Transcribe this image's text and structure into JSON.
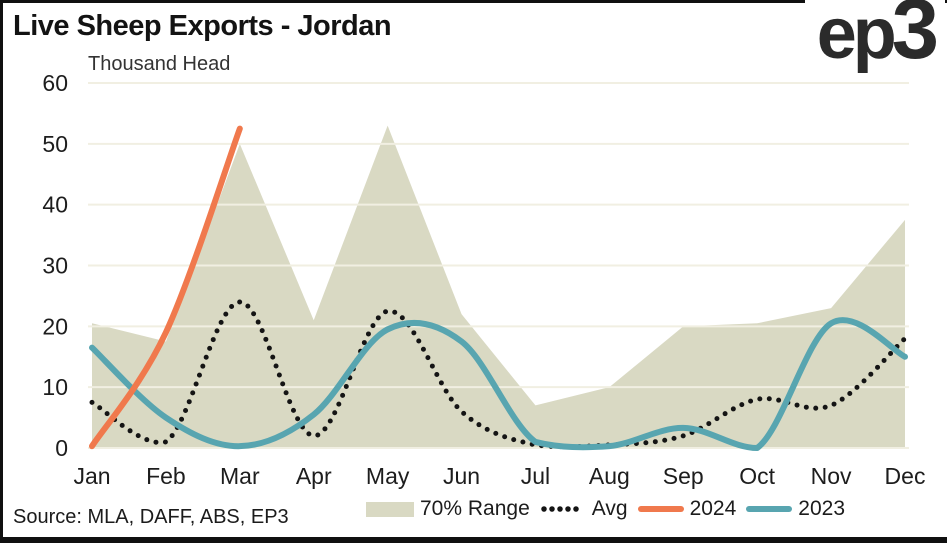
{
  "header": {
    "title": "Live Sheep Exports - Jordan",
    "subtitle": "Thousand Head"
  },
  "logo": {
    "text_ep": "ep",
    "text_3": "3"
  },
  "source": {
    "text": "Source: MLA, DAFF, ABS, EP3"
  },
  "legend": {
    "items": [
      {
        "label": "70% Range",
        "swatch": "area",
        "color": "#d9d9c3"
      },
      {
        "label": "Avg",
        "swatch": "dots",
        "color": "#141414"
      },
      {
        "label": "2024",
        "swatch": "line",
        "color": "#f0794d"
      },
      {
        "label": "2023",
        "swatch": "line",
        "color": "#58a5b0"
      }
    ]
  },
  "chart_data": {
    "type": "line",
    "title": "Live Sheep Exports - Jordan",
    "ylabel": "Thousand Head",
    "categories": [
      "Jan",
      "Feb",
      "Mar",
      "Apr",
      "May",
      "Jun",
      "Jul",
      "Aug",
      "Sep",
      "Oct",
      "Nov",
      "Dec"
    ],
    "ylim": [
      0,
      60
    ],
    "yticks": [
      0,
      10,
      20,
      30,
      40,
      50,
      60
    ],
    "grid": "horizontal",
    "grid_color": "#f1efe2",
    "legend_position": "bottom",
    "series": [
      {
        "name": "70% Range",
        "type": "area",
        "color": "#d9d9c3",
        "upper": [
          20.5,
          17.5,
          50,
          21,
          53,
          22,
          7,
          10,
          20,
          20.5,
          23,
          37.5
        ],
        "lower": [
          0,
          0,
          0,
          0,
          0,
          0,
          0,
          0,
          0,
          0,
          0,
          0
        ]
      },
      {
        "name": "Avg",
        "type": "dotted-line",
        "color": "#141414",
        "values": [
          7.5,
          1,
          24,
          2,
          22.5,
          6,
          0.5,
          0.5,
          2,
          8,
          7,
          18
        ]
      },
      {
        "name": "2023",
        "type": "line",
        "color": "#58a5b0",
        "values": [
          16.5,
          5,
          0.3,
          5.5,
          19.5,
          17.5,
          1,
          0.3,
          3.3,
          0,
          20.5,
          15
        ]
      },
      {
        "name": "2024",
        "type": "line",
        "color": "#f0794d",
        "values": [
          0.3,
          19,
          52.5,
          null,
          null,
          null,
          null,
          null,
          null,
          null,
          null,
          null
        ]
      }
    ]
  }
}
